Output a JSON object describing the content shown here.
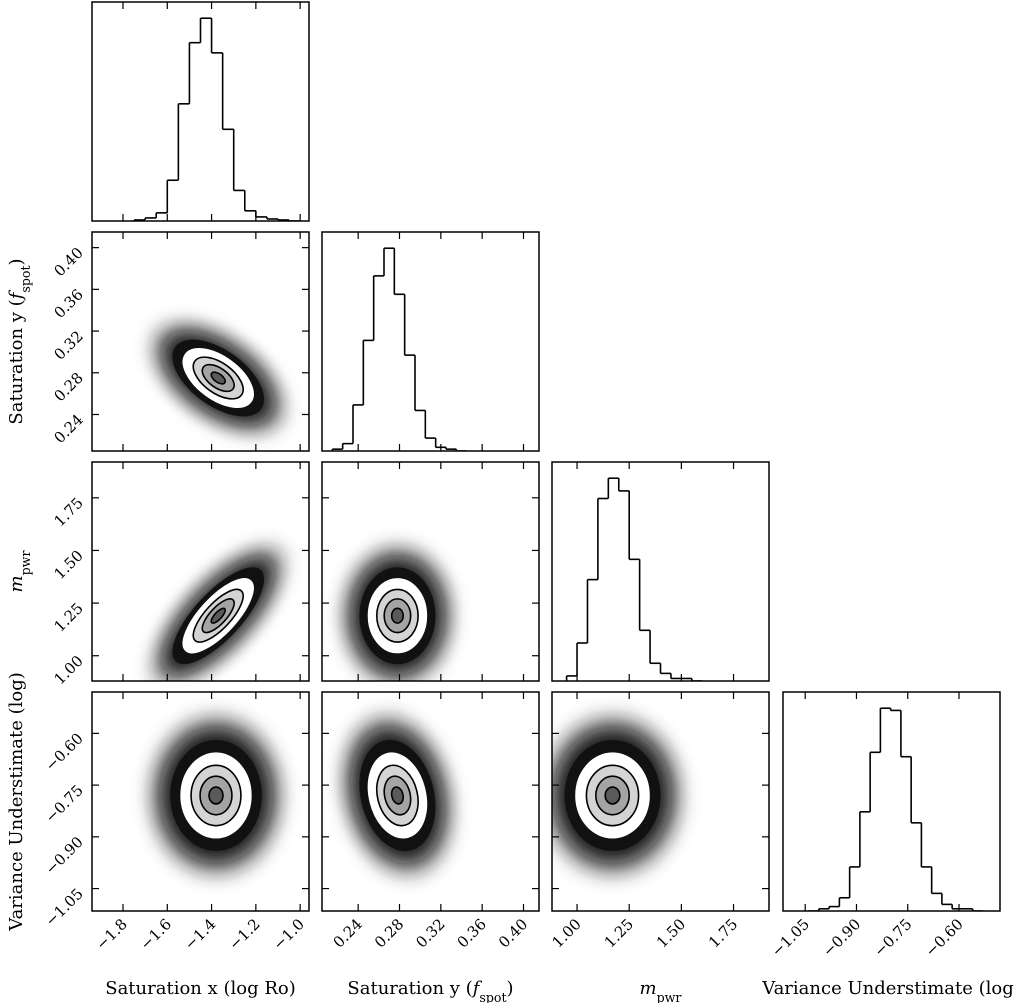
{
  "chart_data": {
    "type": "corner",
    "params": [
      {
        "label": [
          {
            "text": "Saturation x (log Ro)"
          }
        ],
        "lim": [
          -1.94,
          -0.96
        ],
        "ticks": [
          {
            "value": -1.8,
            "label": "−1.8"
          },
          {
            "value": -1.6,
            "label": "−1.6"
          },
          {
            "value": -1.4,
            "label": "−1.4"
          },
          {
            "value": -1.2,
            "label": "−1.2"
          },
          {
            "value": -1.0,
            "label": "−1.0"
          }
        ]
      },
      {
        "label": [
          {
            "text": "Saturation y ("
          },
          {
            "text": "f",
            "style": "italic"
          },
          {
            "text": "spot",
            "style": "sub"
          },
          {
            "text": ")"
          }
        ],
        "lim": [
          0.205,
          0.415
        ],
        "ticks": [
          0.24,
          0.28,
          0.32,
          0.36,
          {
            "value": 0.4,
            "label": "0.40"
          }
        ]
      },
      {
        "label": [
          {
            "text": "m",
            "style": "italic"
          },
          {
            "text": "pwr",
            "style": "sub"
          }
        ],
        "lim": [
          0.88,
          1.92
        ],
        "ticks": [
          {
            "value": 1.0,
            "label": "1.00"
          },
          1.25,
          {
            "value": 1.5,
            "label": "1.50"
          },
          1.75
        ]
      },
      {
        "label": [
          {
            "text": "Variance Understimate (log)"
          }
        ],
        "lim": [
          -1.115,
          -0.48
        ],
        "ticks": [
          {
            "value": -1.05,
            "label": "−1.05"
          },
          {
            "value": -0.9,
            "label": "−0.90"
          },
          {
            "value": -0.75,
            "label": "−0.75"
          },
          {
            "value": -0.6,
            "label": "−0.60"
          }
        ]
      }
    ],
    "histograms": [
      {
        "bins": [
          -1.75,
          -1.7,
          -1.65,
          -1.6,
          -1.55,
          -1.5,
          -1.45,
          -1.4,
          -1.35,
          -1.3,
          -1.25,
          -1.2,
          -1.15,
          -1.1,
          -1.05,
          -1.0
        ],
        "counts": [
          1,
          3,
          8,
          40,
          115,
          175,
          199,
          165,
          90,
          30,
          10,
          4,
          2,
          1,
          0
        ]
      },
      {
        "bins": [
          0.215,
          0.225,
          0.235,
          0.245,
          0.255,
          0.265,
          0.275,
          0.285,
          0.295,
          0.305,
          0.315,
          0.325,
          0.335,
          0.345
        ],
        "counts": [
          1,
          4,
          25,
          60,
          95,
          110,
          85,
          52,
          22,
          7,
          2,
          1,
          0
        ]
      },
      {
        "bins": [
          0.95,
          1.0,
          1.05,
          1.1,
          1.15,
          1.2,
          1.25,
          1.3,
          1.35,
          1.4,
          1.45,
          1.5,
          1.55,
          1.6
        ],
        "counts": [
          2,
          15,
          40,
          72,
          80,
          75,
          48,
          20,
          7,
          3,
          1,
          1,
          0
        ]
      },
      {
        "bins": [
          -1.04,
          -1.01,
          -0.98,
          -0.95,
          -0.92,
          -0.89,
          -0.86,
          -0.83,
          -0.8,
          -0.77,
          -0.74,
          -0.71,
          -0.68,
          -0.65,
          -0.62,
          -0.59,
          -0.56,
          -0.53
        ],
        "counts": [
          0,
          1,
          2,
          6,
          20,
          45,
          72,
          92,
          91,
          70,
          40,
          20,
          8,
          3,
          1,
          1,
          0
        ]
      }
    ],
    "pairs": [
      [
        {
          "center": [
            -1.37,
            0.275
          ],
          "spread": [
            0.09,
            0.016
          ],
          "correlation": -0.55
        }
      ],
      [
        {
          "center": [
            -1.37,
            1.19
          ],
          "spread": [
            0.09,
            0.1
          ],
          "correlation": 0.75
        },
        {
          "center": [
            0.278,
            1.19
          ],
          "spread": [
            0.016,
            0.1
          ],
          "correlation": 0
        }
      ],
      [
        {
          "center": [
            -1.38,
            -0.78
          ],
          "spread": [
            0.09,
            0.07
          ],
          "correlation": 0
        },
        {
          "center": [
            0.278,
            -0.78
          ],
          "spread": [
            0.016,
            0.07
          ],
          "correlation": -0.2
        },
        {
          "center": [
            1.17,
            -0.78
          ],
          "spread": [
            0.1,
            0.07
          ],
          "correlation": 0
        }
      ]
    ],
    "hist_color": "#000000",
    "cloud_color": "#111111",
    "contour_fills": [
      "#ffffff",
      "#d4d4d4",
      "#a4a4a4",
      "#5a5a5a"
    ]
  }
}
